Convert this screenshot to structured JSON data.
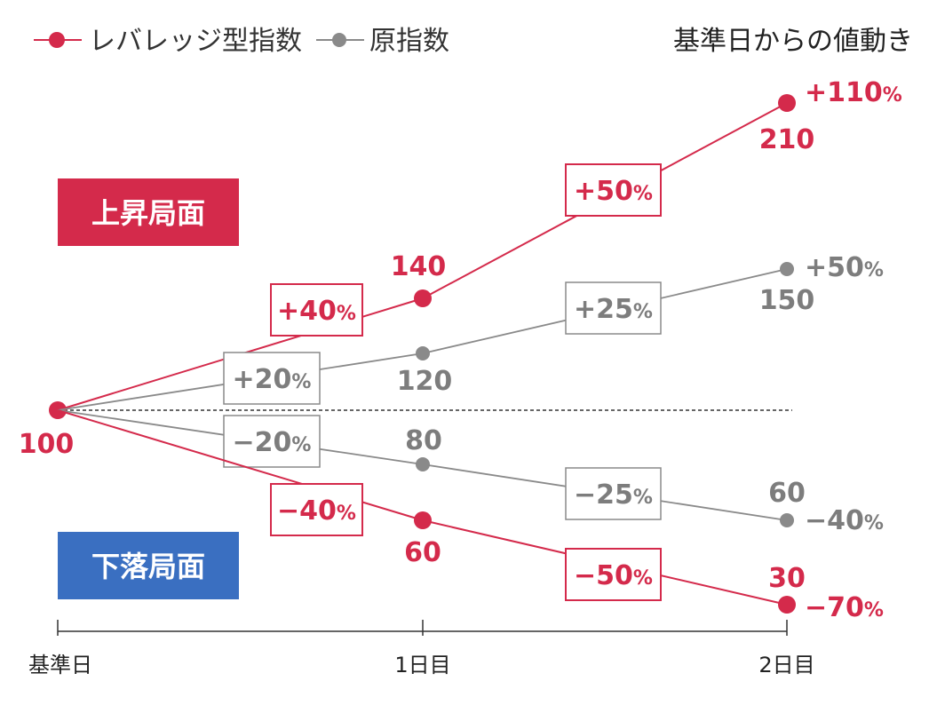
{
  "chart_data": {
    "type": "line",
    "x": [
      "基準日",
      "1日目",
      "2日目"
    ],
    "corner_label": "基準日からの値動き",
    "legend": {
      "placement": "top-left",
      "items": [
        {
          "key": "leveraged",
          "label": "レバレッジ型指数"
        },
        {
          "key": "original",
          "label": "原指数"
        }
      ]
    },
    "phases": [
      {
        "key": "up",
        "label": "上昇局面",
        "color": "#d42a4b"
      },
      {
        "key": "down",
        "label": "下落局面",
        "color": "#3a6fc1"
      }
    ],
    "series": [
      {
        "name": "レバレッジ型指数",
        "key": "lev_up",
        "color": "#d42a4b",
        "values": [
          100,
          140,
          210
        ],
        "value_labels": [
          "100",
          "140",
          "210"
        ],
        "change_labels": [
          "+40",
          "+50"
        ],
        "total_change": "+110"
      },
      {
        "name": "原指数",
        "key": "orig_up",
        "color": "#8a8a8a",
        "values": [
          100,
          120,
          150
        ],
        "value_labels": [
          "",
          "120",
          "150"
        ],
        "change_labels": [
          "+20",
          "+25"
        ],
        "total_change": "+50"
      },
      {
        "name": "原指数",
        "key": "orig_down",
        "color": "#8a8a8a",
        "values": [
          100,
          80,
          60
        ],
        "value_labels": [
          "",
          "80",
          "60"
        ],
        "change_labels": [
          "−20",
          "−25"
        ],
        "total_change": "−40"
      },
      {
        "name": "レバレッジ型指数",
        "key": "lev_down",
        "color": "#d42a4b",
        "values": [
          100,
          60,
          30
        ],
        "value_labels": [
          "",
          "60",
          "30"
        ],
        "change_labels": [
          "−40",
          "−50"
        ],
        "total_change": "−70"
      }
    ],
    "percent_unit": "%",
    "baseline": 100
  }
}
